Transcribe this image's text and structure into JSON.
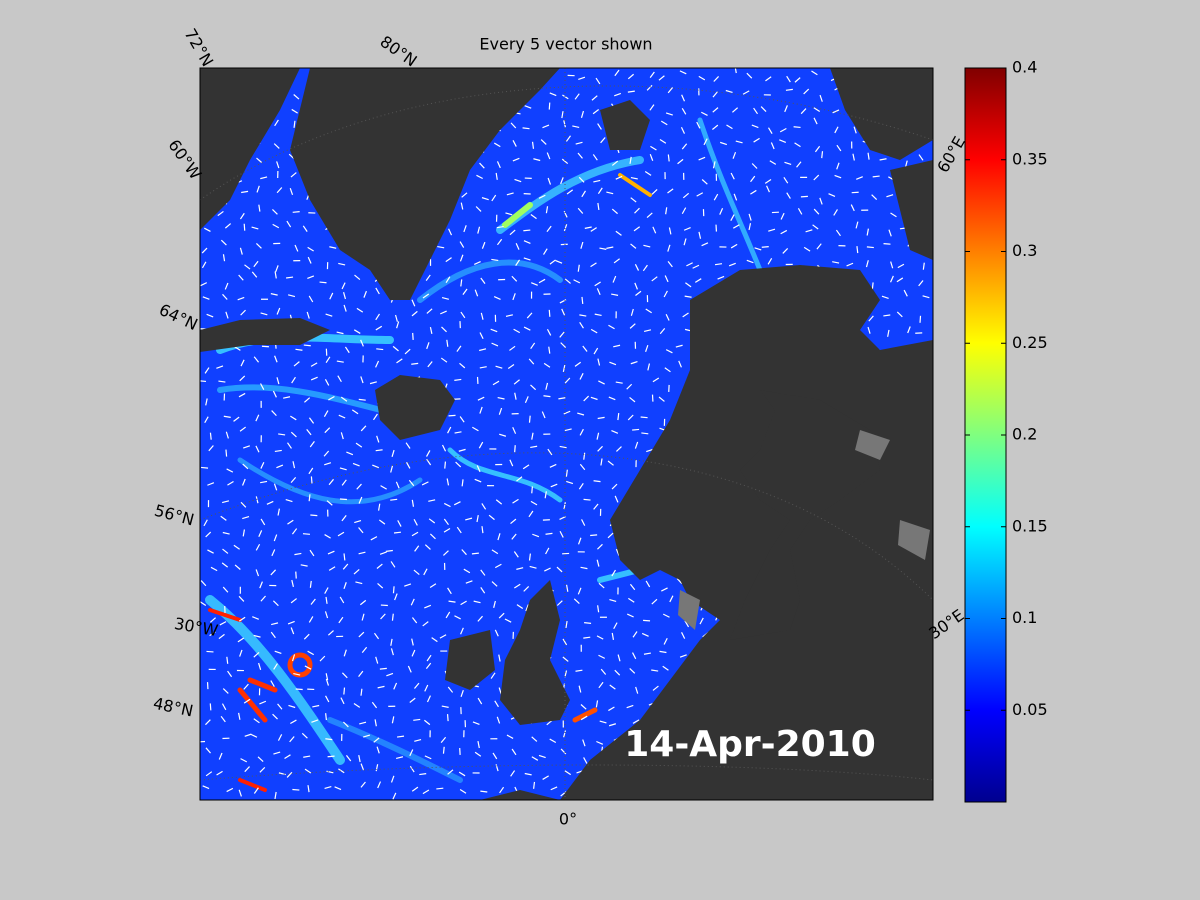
{
  "map": {
    "title": "Every 5 vector shown",
    "graticule_labels": [
      "72°N",
      "80°N",
      "60°W",
      "64°N",
      "56°N",
      "30°W",
      "48°N",
      "0°",
      "60°E",
      "30°E"
    ],
    "date": "14-Apr-2010"
  },
  "colorbar": {
    "colormap": "jet",
    "clim": [
      0,
      0.4
    ],
    "ticks": [
      0.05,
      0.1,
      0.15,
      0.2,
      0.25,
      0.3,
      0.35,
      0.4
    ]
  }
}
